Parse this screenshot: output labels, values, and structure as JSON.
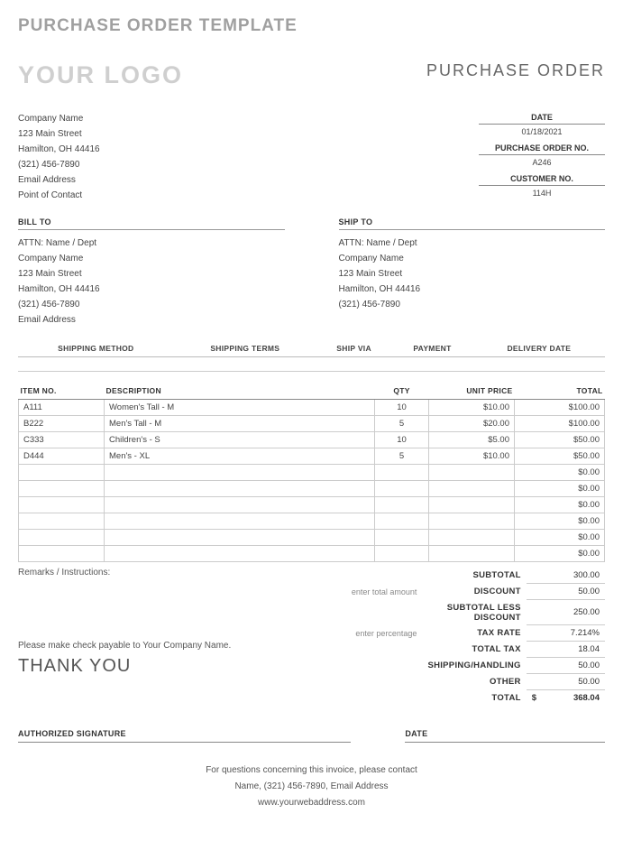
{
  "template_title": "PURCHASE ORDER TEMPLATE",
  "logo_text": "YOUR LOGO",
  "po_title": "PURCHASE ORDER",
  "company": {
    "name": "Company Name",
    "street": "123 Main Street",
    "citystate": "Hamilton, OH 44416",
    "phone": "(321) 456-7890",
    "email": "Email Address",
    "contact": "Point of Contact"
  },
  "meta": {
    "date_label": "DATE",
    "date_value": "01/18/2021",
    "po_no_label": "PURCHASE ORDER NO.",
    "po_no_value": "A246",
    "cust_no_label": "CUSTOMER NO.",
    "cust_no_value": "114H"
  },
  "billto": {
    "label": "BILL TO",
    "attn": "ATTN: Name / Dept",
    "name": "Company Name",
    "street": "123 Main Street",
    "citystate": "Hamilton, OH 44416",
    "phone": "(321) 456-7890",
    "email": "Email Address"
  },
  "shipto": {
    "label": "SHIP TO",
    "attn": "ATTN: Name / Dept",
    "name": "Company Name",
    "street": "123 Main Street",
    "citystate": "Hamilton, OH 44416",
    "phone": "(321) 456-7890"
  },
  "ship_headers": {
    "method": "SHIPPING METHOD",
    "terms": "SHIPPING TERMS",
    "via": "SHIP VIA",
    "payment": "PAYMENT",
    "delivery": "DELIVERY DATE"
  },
  "item_headers": {
    "itemno": "ITEM NO.",
    "desc": "DESCRIPTION",
    "qty": "QTY",
    "price": "UNIT PRICE",
    "total": "TOTAL"
  },
  "items": [
    {
      "no": "A111",
      "desc": "Women's Tall - M",
      "qty": "10",
      "price": "$10.00",
      "total": "$100.00"
    },
    {
      "no": "B222",
      "desc": "Men's Tall - M",
      "qty": "5",
      "price": "$20.00",
      "total": "$100.00"
    },
    {
      "no": "C333",
      "desc": "Children's - S",
      "qty": "10",
      "price": "$5.00",
      "total": "$50.00"
    },
    {
      "no": "D444",
      "desc": "Men's - XL",
      "qty": "5",
      "price": "$10.00",
      "total": "$50.00"
    },
    {
      "no": "",
      "desc": "",
      "qty": "",
      "price": "",
      "total": "$0.00"
    },
    {
      "no": "",
      "desc": "",
      "qty": "",
      "price": "",
      "total": "$0.00"
    },
    {
      "no": "",
      "desc": "",
      "qty": "",
      "price": "",
      "total": "$0.00"
    },
    {
      "no": "",
      "desc": "",
      "qty": "",
      "price": "",
      "total": "$0.00"
    },
    {
      "no": "",
      "desc": "",
      "qty": "",
      "price": "",
      "total": "$0.00"
    },
    {
      "no": "",
      "desc": "",
      "qty": "",
      "price": "",
      "total": "$0.00"
    }
  ],
  "remarks_label": "Remarks / Instructions:",
  "payable": "Please make check payable to Your Company Name.",
  "thankyou": "THANK YOU",
  "totals": {
    "subtotal_label": "SUBTOTAL",
    "subtotal_value": "300.00",
    "discount_hint": "enter total amount",
    "discount_label": "DISCOUNT",
    "discount_value": "50.00",
    "subless_label": "SUBTOTAL LESS DISCOUNT",
    "subless_value": "250.00",
    "taxrate_hint": "enter percentage",
    "taxrate_label": "TAX RATE",
    "taxrate_value": "7.214%",
    "totaltax_label": "TOTAL TAX",
    "totaltax_value": "18.04",
    "shipping_label": "SHIPPING/HANDLING",
    "shipping_value": "50.00",
    "other_label": "OTHER",
    "other_value": "50.00",
    "grand_label": "TOTAL",
    "grand_currency": "$",
    "grand_value": "368.04"
  },
  "sig": {
    "auth": "AUTHORIZED SIGNATURE",
    "date": "DATE"
  },
  "footer": {
    "line1": "For questions concerning this invoice, please contact",
    "line2": "Name, (321) 456-7890, Email Address",
    "line3": "www.yourwebaddress.com"
  }
}
